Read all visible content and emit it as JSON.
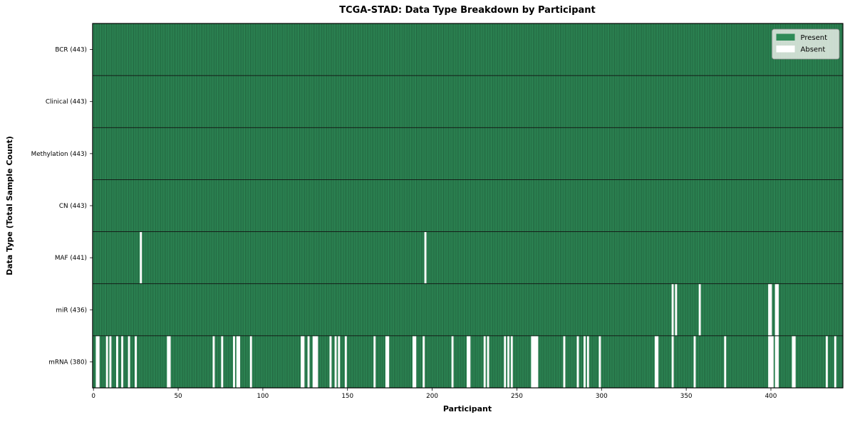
{
  "chart_data": {
    "type": "heatmap",
    "title": "TCGA-STAD: Data Type Breakdown by Participant",
    "xlabel": "Participant",
    "ylabel": "Data Type (Total Sample Count)",
    "n_participants": 443,
    "x_range": [
      -0.5,
      442.5
    ],
    "x_ticks": [
      0,
      50,
      100,
      150,
      200,
      250,
      300,
      350,
      400
    ],
    "grid": false,
    "legend_position": "upper right",
    "legend": [
      {
        "label": "Present",
        "color": "#2e8b57"
      },
      {
        "label": "Absent",
        "color": "#ffffff"
      }
    ],
    "colors": {
      "present": "#2e8b57",
      "absent": "#ffffff",
      "bar_edge": "rgba(0,0,0,0.42)",
      "row_separator": "#111111",
      "plot_border": "#000000",
      "legend_fill": "#e9ede7",
      "legend_border": "#8a8a8a"
    },
    "rows": [
      {
        "data_type": "BCR",
        "label": "BCR (443)",
        "present_count": 443,
        "absent_participants": []
      },
      {
        "data_type": "Clinical",
        "label": "Clinical (443)",
        "present_count": 443,
        "absent_participants": []
      },
      {
        "data_type": "Methylation",
        "label": "Methylation (443)",
        "present_count": 443,
        "absent_participants": []
      },
      {
        "data_type": "CN",
        "label": "CN (443)",
        "present_count": 443,
        "absent_participants": []
      },
      {
        "data_type": "MAF",
        "label": "MAF (441)",
        "present_count": 441,
        "absent_participants": [
          28,
          196
        ]
      },
      {
        "data_type": "miR",
        "label": "miR (436)",
        "present_count": 436,
        "absent_participants": [
          342,
          344,
          358,
          399,
          400,
          403,
          404
        ]
      },
      {
        "data_type": "mRNA",
        "label": "mRNA (380)",
        "present_count": 380,
        "absent_participants": [
          2,
          3,
          8,
          10,
          14,
          17,
          21,
          25,
          44,
          45,
          71,
          76,
          83,
          85,
          86,
          93,
          123,
          124,
          127,
          130,
          131,
          132,
          140,
          143,
          145,
          149,
          166,
          173,
          174,
          189,
          190,
          195,
          212,
          221,
          222,
          231,
          233,
          243,
          245,
          247,
          259,
          260,
          261,
          262,
          278,
          286,
          290,
          292,
          299,
          332,
          333,
          342,
          355,
          373,
          399,
          400,
          401,
          403,
          404,
          413,
          414,
          433,
          438
        ]
      }
    ]
  }
}
